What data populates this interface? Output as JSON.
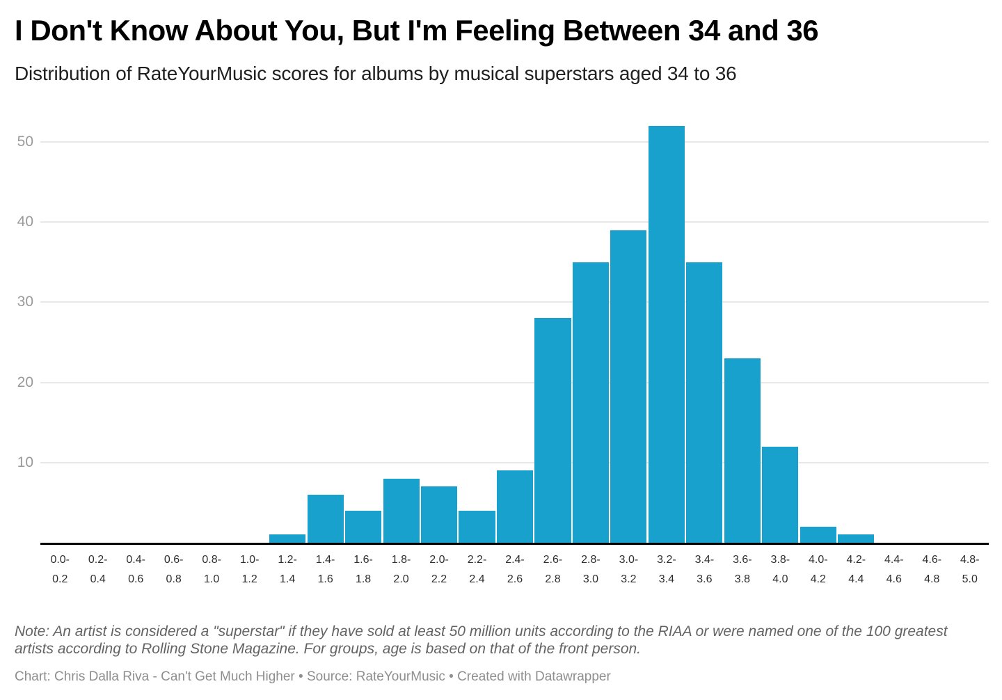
{
  "chart_data": {
    "type": "bar",
    "title": "I Don't Know About You, But I'm Feeling Between 34 and 36",
    "subtitle": "Distribution of RateYourMusic scores for albums by musical superstars aged 34 to 36",
    "categories": [
      "0.0-0.2",
      "0.2-0.4",
      "0.4-0.6",
      "0.6-0.8",
      "0.8-1.0",
      "1.0-1.2",
      "1.2-1.4",
      "1.4-1.6",
      "1.6-1.8",
      "1.8-2.0",
      "2.0-2.2",
      "2.2-2.4",
      "2.4-2.6",
      "2.6-2.8",
      "2.8-3.0",
      "3.0-3.2",
      "3.2-3.4",
      "3.4-3.6",
      "3.6-3.8",
      "3.8-4.0",
      "4.0-4.2",
      "4.2-4.4",
      "4.4-4.6",
      "4.6-4.8",
      "4.8-5.0"
    ],
    "values": [
      0,
      0,
      0,
      0,
      0,
      0,
      1,
      6,
      4,
      8,
      7,
      4,
      9,
      28,
      35,
      39,
      52,
      35,
      23,
      12,
      2,
      1,
      0,
      0,
      0
    ],
    "xlabel": "",
    "ylabel": "",
    "ylim": [
      0,
      53
    ],
    "yticks": [
      10,
      20,
      30,
      40,
      50
    ],
    "grid": "horizontal",
    "legend": "none",
    "bar_color": "#18a1cc",
    "grid_color": "#e8e8e8",
    "axis_line_color": "#000000",
    "note": "Note: An artist is considered a \"superstar\" if they have sold at least 50 million units according to the RIAA or were named one of the 100 greatest artists according to Rolling Stone Magazine. For groups, age is based on that of the front person.",
    "credit": "Chart: Chris Dalla Riva - Can't Get Much Higher • Source: RateYourMusic • Created with Datawrapper"
  }
}
